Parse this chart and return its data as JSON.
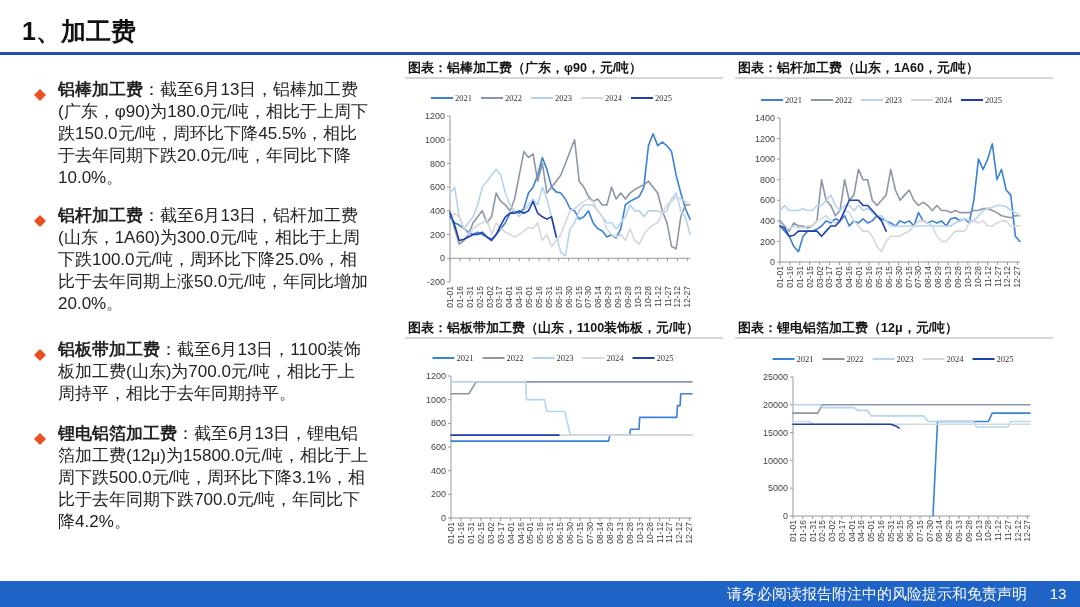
{
  "chart_data": [
    {
      "type": "other",
      "title": "1、加工费",
      "annotations": [
        "铝棒加工费：截至6月13日，铝棒加工费(广东，φ90)为180.0元/吨，相比于上周下跌150.0元/吨，周环比下降45.5%，相比于去年同期下跌20.0元/吨，年同比下降10.0%。",
        "铝杆加工费：截至6月13日，铝杆加工费(山东，1A60)为300.0元/吨，相比于上周下跌100.0元/吨，周环比下降25.0%，相比于去年同期上涨50.0元/吨，年同比增加20.0%。",
        "铝板带加工费：截至6月13日，1100装饰板加工费(山东)为700.0元/吨，相比于上周持平，相比于去年同期持平。",
        "锂电铝箔加工费：截至6月13日，锂电铝箔加工费(12μ)为15800.0元/吨，相比于上周下跌500.0元/吨，周环比下降3.1%，相比于去年同期下跌700.0元/吨，年同比下降4.2%。",
        "请务必阅读报告附注中的风险提示和免责声明",
        "13"
      ]
    },
    {
      "type": "line",
      "title": "图表：铝棒加工费（广东，φ90，元/吨）",
      "legend": "top",
      "ylim": [
        -200,
        1200
      ],
      "yticks": [
        -200,
        0,
        200,
        400,
        600,
        800,
        1000,
        1200
      ],
      "xlim": [
        "--01-01",
        "--12-31"
      ],
      "xticks": [
        {
          "value": "--01-01",
          "label": "01-01"
        },
        {
          "value": "--01-16",
          "label": "01-16"
        },
        {
          "value": "--01-31",
          "label": "01-31"
        },
        {
          "value": "--02-15",
          "label": "02-15"
        },
        {
          "value": "--03-02",
          "label": "03-02"
        },
        {
          "value": "--03-17",
          "label": "03-17"
        },
        {
          "value": "--04-01",
          "label": "04-01"
        },
        {
          "value": "--04-16",
          "label": "04-16"
        },
        {
          "value": "--05-01",
          "label": "05-01"
        },
        {
          "value": "--05-16",
          "label": "05-16"
        },
        {
          "value": "--05-31",
          "label": "05-31"
        },
        {
          "value": "--06-15",
          "label": "06-15"
        },
        {
          "value": "--06-30",
          "label": "06-30"
        },
        {
          "value": "--07-15",
          "label": "07-15"
        },
        {
          "value": "--07-30",
          "label": "07-30"
        },
        {
          "value": "--08-14",
          "label": "08-14"
        },
        {
          "value": "--08-29",
          "label": "08-29"
        },
        {
          "value": "--09-13",
          "label": "09-13"
        },
        {
          "value": "--09-28",
          "label": "09-28"
        },
        {
          "value": "--10-13",
          "label": "10-13"
        },
        {
          "value": "--10-28",
          "label": "10-28"
        },
        {
          "value": "--11-12",
          "label": "11-12"
        },
        {
          "value": "--11-27",
          "label": "11-27"
        },
        {
          "value": "--12-12",
          "label": "12-12"
        },
        {
          "value": "--12-27",
          "label": "12-27"
        }
      ],
      "x": [
        "--01-01",
        "--01-08",
        "--01-15",
        "--01-22",
        "--01-29",
        "--02-05",
        "--02-12",
        "--02-19",
        "--02-26",
        "--03-05",
        "--03-12",
        "--03-19",
        "--03-26",
        "--04-02",
        "--04-09",
        "--04-16",
        "--04-23",
        "--04-30",
        "--05-07",
        "--05-14",
        "--05-21",
        "--05-28",
        "--06-04",
        "--06-11",
        "--06-18",
        "--06-25",
        "--07-02",
        "--07-09",
        "--07-16",
        "--07-23",
        "--07-30",
        "--08-06",
        "--08-13",
        "--08-20",
        "--08-27",
        "--09-03",
        "--09-10",
        "--09-17",
        "--09-24",
        "--10-01",
        "--10-08",
        "--10-15",
        "--10-22",
        "--10-29",
        "--11-05",
        "--11-12",
        "--11-19",
        "--11-26",
        "--12-03",
        "--12-10",
        "--12-17",
        "--12-24",
        "--12-31"
      ],
      "series": [
        {
          "name": "2021",
          "color": "#3b82d4",
          "values": [
            350,
            300,
            280,
            250,
            220,
            200,
            220,
            200,
            180,
            160,
            200,
            250,
            300,
            380,
            400,
            380,
            420,
            550,
            600,
            700,
            850,
            750,
            600,
            560,
            550,
            500,
            420,
            400,
            330,
            350,
            400,
            300,
            250,
            230,
            180,
            200,
            170,
            250,
            450,
            480,
            500,
            520,
            600,
            950,
            1050,
            950,
            980,
            950,
            900,
            700,
            550,
            420,
            330
          ]
        },
        {
          "name": "2022",
          "color": "#8c96a8",
          "values": [
            400,
            250,
            120,
            150,
            200,
            300,
            350,
            400,
            300,
            350,
            550,
            480,
            450,
            400,
            500,
            700,
            900,
            850,
            880,
            650,
            800,
            550,
            600,
            650,
            700,
            800,
            900,
            1000,
            650,
            600,
            520,
            480,
            500,
            450,
            450,
            600,
            500,
            550,
            500,
            550,
            580,
            600,
            620,
            650,
            600,
            550,
            400,
            300,
            100,
            80,
            350,
            450,
            450
          ]
        },
        {
          "name": "2023",
          "color": "#b4d4f0",
          "values": [
            550,
            600,
            350,
            250,
            300,
            350,
            450,
            600,
            650,
            700,
            750,
            700,
            550,
            450,
            400,
            350,
            400,
            450,
            500,
            450,
            600,
            500,
            350,
            200,
            50,
            20,
            250,
            300,
            400,
            450,
            450,
            450,
            400,
            350,
            300,
            300,
            250,
            300,
            350,
            450,
            400,
            400,
            350,
            400,
            400,
            400,
            380,
            400,
            500,
            550,
            400,
            350,
            200
          ]
        },
        {
          "name": "2024",
          "color": "#d4d7dc",
          "values": [
            300,
            380,
            350,
            250,
            200,
            250,
            280,
            300,
            330,
            200,
            300,
            250,
            220,
            200,
            180,
            200,
            230,
            260,
            250,
            300,
            150,
            200,
            100,
            150,
            200,
            300,
            400,
            420,
            450,
            480,
            500,
            480,
            400,
            350,
            250,
            200,
            180,
            200,
            150,
            250,
            150,
            120,
            200,
            250,
            280,
            300,
            380,
            450,
            480,
            520,
            500,
            480,
            450
          ]
        },
        {
          "name": "2025",
          "color": "#1f3fae",
          "x": [
            "--01-01",
            "--01-08",
            "--01-15",
            "--01-22",
            "--01-29",
            "--02-05",
            "--02-12",
            "--02-19",
            "--02-26",
            "--03-05",
            "--03-12",
            "--03-19",
            "--03-26",
            "--04-02",
            "--04-09",
            "--04-16",
            "--04-23",
            "--04-30",
            "--05-07",
            "--05-14",
            "--05-21",
            "--05-28",
            "--06-04",
            "--06-11"
          ],
          "values": [
            380,
            280,
            150,
            160,
            180,
            200,
            200,
            220,
            180,
            150,
            200,
            280,
            350,
            380,
            380,
            400,
            380,
            400,
            480,
            380,
            350,
            330,
            350,
            180
          ]
        }
      ]
    },
    {
      "type": "line",
      "title": "图表：铝杆加工费（山东，1A60，元/吨）",
      "legend": "top",
      "ylim": [
        0,
        1400
      ],
      "yticks": [
        0,
        200,
        400,
        600,
        800,
        1000,
        1200,
        1400
      ],
      "xlim": [
        "--01-01",
        "--12-31"
      ],
      "xticks": [
        {
          "value": "--01-01",
          "label": "01-01"
        },
        {
          "value": "--01-16",
          "label": "01-16"
        },
        {
          "value": "--01-31",
          "label": "01-31"
        },
        {
          "value": "--02-15",
          "label": "02-15"
        },
        {
          "value": "--03-02",
          "label": "03-02"
        },
        {
          "value": "--03-17",
          "label": "03-17"
        },
        {
          "value": "--04-01",
          "label": "04-01"
        },
        {
          "value": "--04-16",
          "label": "04-16"
        },
        {
          "value": "--05-01",
          "label": "05-01"
        },
        {
          "value": "--05-16",
          "label": "05-16"
        },
        {
          "value": "--05-31",
          "label": "05-31"
        },
        {
          "value": "--06-15",
          "label": "06-15"
        },
        {
          "value": "--06-30",
          "label": "06-30"
        },
        {
          "value": "--07-15",
          "label": "07-15"
        },
        {
          "value": "--07-30",
          "label": "07-30"
        },
        {
          "value": "--08-14",
          "label": "08-14"
        },
        {
          "value": "--08-29",
          "label": "08-29"
        },
        {
          "value": "--09-13",
          "label": "09-13"
        },
        {
          "value": "--09-28",
          "label": "09-28"
        },
        {
          "value": "--10-13",
          "label": "10-13"
        },
        {
          "value": "--10-28",
          "label": "10-28"
        },
        {
          "value": "--11-12",
          "label": "11-12"
        },
        {
          "value": "--11-27",
          "label": "11-27"
        },
        {
          "value": "--12-12",
          "label": "12-12"
        },
        {
          "value": "--12-27",
          "label": "12-27"
        }
      ],
      "x": [
        "--01-01",
        "--01-08",
        "--01-15",
        "--01-22",
        "--01-29",
        "--02-05",
        "--02-12",
        "--02-19",
        "--02-26",
        "--03-05",
        "--03-12",
        "--03-19",
        "--03-26",
        "--04-02",
        "--04-09",
        "--04-16",
        "--04-23",
        "--04-30",
        "--05-07",
        "--05-14",
        "--05-21",
        "--05-28",
        "--06-04",
        "--06-11",
        "--06-18",
        "--06-25",
        "--07-02",
        "--07-09",
        "--07-16",
        "--07-23",
        "--07-30",
        "--08-06",
        "--08-13",
        "--08-20",
        "--08-27",
        "--09-03",
        "--09-10",
        "--09-17",
        "--09-24",
        "--10-01",
        "--10-08",
        "--10-15",
        "--10-22",
        "--10-29",
        "--11-05",
        "--11-12",
        "--11-19",
        "--11-26",
        "--12-03",
        "--12-10",
        "--12-17",
        "--12-24",
        "--12-31"
      ],
      "series": [
        {
          "name": "2021",
          "color": "#3b82d4",
          "values": [
            350,
            300,
            250,
            150,
            100,
            250,
            300,
            300,
            320,
            350,
            400,
            380,
            420,
            400,
            450,
            350,
            400,
            380,
            420,
            380,
            400,
            450,
            420,
            400,
            380,
            350,
            400,
            380,
            400,
            350,
            480,
            400,
            380,
            400,
            380,
            400,
            350,
            420,
            430,
            400,
            420,
            380,
            600,
            1000,
            900,
            1000,
            1150,
            800,
            900,
            700,
            650,
            250,
            200
          ]
        },
        {
          "name": "2022",
          "color": "#8c96a8",
          "values": [
            400,
            350,
            300,
            380,
            350,
            350,
            330,
            350,
            400,
            800,
            600,
            550,
            450,
            500,
            800,
            600,
            650,
            900,
            800,
            800,
            600,
            550,
            600,
            650,
            900,
            700,
            600,
            650,
            700,
            600,
            550,
            580,
            550,
            500,
            550,
            500,
            500,
            480,
            500,
            480,
            480,
            480,
            500,
            500,
            520,
            520,
            500,
            480,
            450,
            440,
            430,
            450,
            450
          ]
        },
        {
          "name": "2023",
          "color": "#b4d4f0",
          "values": [
            500,
            550,
            500,
            500,
            500,
            520,
            500,
            500,
            550,
            550,
            600,
            650,
            550,
            500,
            550,
            550,
            500,
            550,
            500,
            520,
            480,
            450,
            450,
            400,
            350,
            350,
            350,
            350,
            350,
            350,
            350,
            350,
            350,
            350,
            350,
            350,
            350,
            350,
            380,
            400,
            420,
            400,
            400,
            450,
            500,
            520,
            530,
            550,
            550,
            540,
            500,
            480,
            450
          ]
        },
        {
          "name": "2024",
          "color": "#d4d7dc",
          "values": [
            350,
            330,
            320,
            350,
            330,
            330,
            350,
            350,
            400,
            420,
            450,
            400,
            380,
            400,
            500,
            480,
            400,
            350,
            300,
            300,
            250,
            150,
            100,
            200,
            250,
            250,
            250,
            280,
            300,
            350,
            400,
            400,
            380,
            350,
            250,
            200,
            200,
            250,
            300,
            300,
            300,
            380,
            400,
            380,
            400,
            350,
            350,
            380,
            400,
            400,
            350,
            350,
            350
          ]
        },
        {
          "name": "2025",
          "color": "#1f3fae",
          "x": [
            "--01-01",
            "--01-08",
            "--01-15",
            "--01-22",
            "--01-29",
            "--02-05",
            "--02-12",
            "--02-19",
            "--02-26",
            "--03-05",
            "--03-12",
            "--03-19",
            "--03-26",
            "--04-02",
            "--04-09",
            "--04-16",
            "--04-23",
            "--04-30",
            "--05-07",
            "--05-14",
            "--05-21",
            "--05-28",
            "--06-04",
            "--06-11"
          ],
          "values": [
            350,
            330,
            250,
            260,
            300,
            300,
            300,
            300,
            300,
            250,
            300,
            350,
            350,
            400,
            500,
            600,
            600,
            600,
            550,
            550,
            500,
            450,
            400,
            300
          ]
        }
      ]
    },
    {
      "type": "line",
      "title": "图表：铝板带加工费（山东，1100装饰板，元/吨）",
      "legend": "top",
      "ylim": [
        0,
        1200
      ],
      "yticks": [
        0,
        200,
        400,
        600,
        800,
        1000,
        1200
      ],
      "xlim": [
        "--01-01",
        "--12-31"
      ],
      "xticks": [
        {
          "value": "--01-01",
          "label": "01-01"
        },
        {
          "value": "--01-16",
          "label": "01-16"
        },
        {
          "value": "--01-31",
          "label": "01-31"
        },
        {
          "value": "--02-15",
          "label": "02-15"
        },
        {
          "value": "--03-02",
          "label": "03-02"
        },
        {
          "value": "--03-17",
          "label": "03-17"
        },
        {
          "value": "--04-01",
          "label": "04-01"
        },
        {
          "value": "--04-16",
          "label": "04-16"
        },
        {
          "value": "--05-01",
          "label": "05-01"
        },
        {
          "value": "--05-16",
          "label": "05-16"
        },
        {
          "value": "--05-31",
          "label": "05-31"
        },
        {
          "value": "--06-15",
          "label": "06-15"
        },
        {
          "value": "--06-30",
          "label": "06-30"
        },
        {
          "value": "--07-15",
          "label": "07-15"
        },
        {
          "value": "--07-30",
          "label": "07-30"
        },
        {
          "value": "--08-14",
          "label": "08-14"
        },
        {
          "value": "--08-29",
          "label": "08-29"
        },
        {
          "value": "--09-13",
          "label": "09-13"
        },
        {
          "value": "--09-28",
          "label": "09-28"
        },
        {
          "value": "--10-13",
          "label": "10-13"
        },
        {
          "value": "--10-28",
          "label": "10-28"
        },
        {
          "value": "--11-12",
          "label": "11-12"
        },
        {
          "value": "--11-27",
          "label": "11-27"
        },
        {
          "value": "--12-12",
          "label": "12-12"
        },
        {
          "value": "--12-27",
          "label": "12-27"
        }
      ],
      "series": [
        {
          "name": "2021",
          "color": "#3b82d4",
          "x": [
            "--01-01",
            "--08-27",
            "--08-29",
            "--09-28",
            "--09-29",
            "--10-12",
            "--10-13",
            "--12-08",
            "--12-09",
            "--12-13",
            "--12-14",
            "--12-31"
          ],
          "values": [
            650,
            650,
            700,
            700,
            750,
            750,
            850,
            850,
            950,
            950,
            1050,
            1050
          ]
        },
        {
          "name": "2022",
          "color": "#8c96a8",
          "x": [
            "--01-01",
            "--01-28",
            "--02-08",
            "--12-31"
          ],
          "values": [
            1050,
            1050,
            1150,
            1150
          ]
        },
        {
          "name": "2023",
          "color": "#b4d4f0",
          "x": [
            "--01-01",
            "--04-24",
            "--04-25",
            "--05-22",
            "--05-26",
            "--06-22",
            "--06-30",
            "--12-31"
          ],
          "values": [
            1150,
            1150,
            1000,
            1000,
            900,
            900,
            700,
            700
          ]
        },
        {
          "name": "2024",
          "color": "#d4d7dc",
          "x": [
            "--01-01",
            "--12-31"
          ],
          "values": [
            700,
            700
          ]
        },
        {
          "name": "2025",
          "color": "#1f3fae",
          "x": [
            "--01-01",
            "--06-13"
          ],
          "values": [
            700,
            700
          ]
        }
      ]
    },
    {
      "type": "line",
      "title": "图表：锂电铝箔加工费（12μ，元/吨）",
      "legend": "top",
      "ylim": [
        0,
        25000
      ],
      "yticks": [
        0,
        5000,
        10000,
        15000,
        20000,
        25000
      ],
      "xlim": [
        "--01-01",
        "--12-31"
      ],
      "xticks": [
        {
          "value": "--01-01",
          "label": "01-01"
        },
        {
          "value": "--01-16",
          "label": "01-16"
        },
        {
          "value": "--01-31",
          "label": "01-31"
        },
        {
          "value": "--02-15",
          "label": "02-15"
        },
        {
          "value": "--03-02",
          "label": "03-02"
        },
        {
          "value": "--03-17",
          "label": "03-17"
        },
        {
          "value": "--04-01",
          "label": "04-01"
        },
        {
          "value": "--04-16",
          "label": "04-16"
        },
        {
          "value": "--05-01",
          "label": "05-01"
        },
        {
          "value": "--05-16",
          "label": "05-16"
        },
        {
          "value": "--05-31",
          "label": "05-31"
        },
        {
          "value": "--06-15",
          "label": "06-15"
        },
        {
          "value": "--06-30",
          "label": "06-30"
        },
        {
          "value": "--07-15",
          "label": "07-15"
        },
        {
          "value": "--07-30",
          "label": "07-30"
        },
        {
          "value": "--08-14",
          "label": "08-14"
        },
        {
          "value": "--08-29",
          "label": "08-29"
        },
        {
          "value": "--09-13",
          "label": "09-13"
        },
        {
          "value": "--09-28",
          "label": "09-28"
        },
        {
          "value": "--10-13",
          "label": "10-13"
        },
        {
          "value": "--10-28",
          "label": "10-28"
        },
        {
          "value": "--11-12",
          "label": "11-12"
        },
        {
          "value": "--11-27",
          "label": "11-27"
        },
        {
          "value": "--12-12",
          "label": "12-12"
        },
        {
          "value": "--12-27",
          "label": "12-27"
        }
      ],
      "series": [
        {
          "name": "2021",
          "color": "#3b82d4",
          "x": [
            "--08-04",
            "--08-11",
            "--10-28",
            "--11-03",
            "--12-31"
          ],
          "values": [
            0,
            17000,
            17000,
            18500,
            18500
          ]
        },
        {
          "name": "2022",
          "color": "#8c96a8",
          "x": [
            "--01-01",
            "--02-08",
            "--02-15",
            "--12-31"
          ],
          "values": [
            18500,
            18500,
            20000,
            20000
          ]
        },
        {
          "name": "2023",
          "color": "#b4d4f0",
          "x": [
            "--01-01",
            "--02-12",
            "--02-15",
            "--04-05",
            "--04-10",
            "--04-25",
            "--05-01",
            "--07-20",
            "--07-28",
            "--10-05",
            "--10-10",
            "--11-27",
            "--12-01",
            "--12-31"
          ],
          "values": [
            20000,
            20000,
            19500,
            19500,
            19000,
            19000,
            18000,
            18000,
            17000,
            17000,
            16000,
            16000,
            17000,
            17000
          ]
        },
        {
          "name": "2024",
          "color": "#d4d7dc",
          "x": [
            "--01-01",
            "--01-25",
            "--02-01",
            "--12-31"
          ],
          "values": [
            17000,
            17000,
            16500,
            16500
          ]
        },
        {
          "name": "2025",
          "color": "#1f3fae",
          "x": [
            "--01-01",
            "--05-31",
            "--06-08",
            "--06-13"
          ],
          "values": [
            16500,
            16500,
            16200,
            15800
          ]
        }
      ]
    }
  ]
}
